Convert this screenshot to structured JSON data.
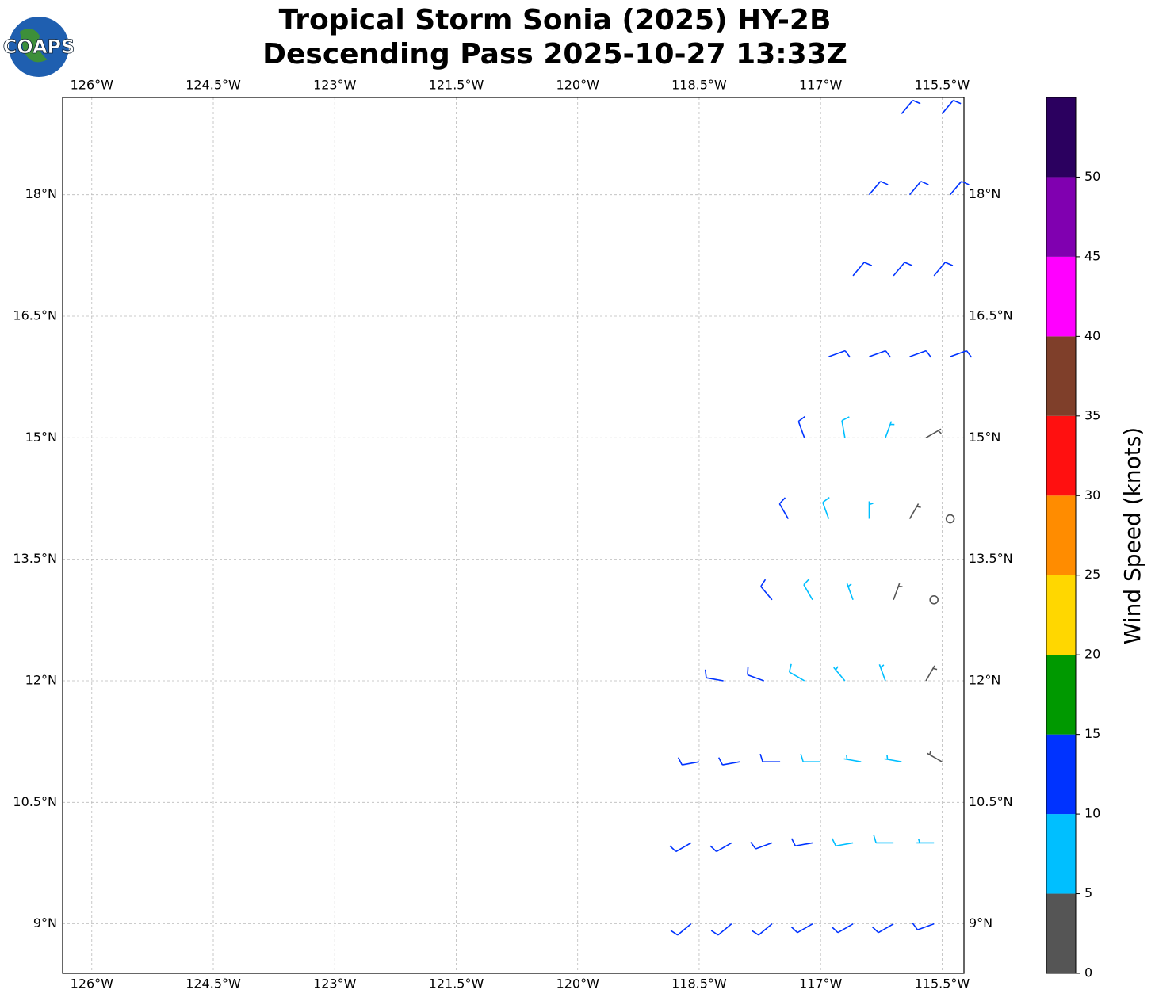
{
  "chart_data": {
    "type": "barbs",
    "logo": "COAPS",
    "title": "Tropical Storm Sonia (2025) HY-2B",
    "subtitle": "Descending Pass 2025-10-27 13:33Z",
    "xlim": [
      -126.36,
      -115.23
    ],
    "ylim": [
      8.39,
      19.2
    ],
    "xticks": [
      {
        "value": -126,
        "label": "126°W"
      },
      {
        "value": -124.5,
        "label": "124.5°W"
      },
      {
        "value": -123,
        "label": "123°W"
      },
      {
        "value": -121.5,
        "label": "121.5°W"
      },
      {
        "value": -120,
        "label": "120°W"
      },
      {
        "value": -118.5,
        "label": "118.5°W"
      },
      {
        "value": -117,
        "label": "117°W"
      },
      {
        "value": -115.5,
        "label": "115.5°W"
      }
    ],
    "yticks": [
      {
        "value": 9,
        "label": "9°N"
      },
      {
        "value": 10.5,
        "label": "10.5°N"
      },
      {
        "value": 12,
        "label": "12°N"
      },
      {
        "value": 13.5,
        "label": "13.5°N"
      },
      {
        "value": 15,
        "label": "15°N"
      },
      {
        "value": 16.5,
        "label": "16.5°N"
      },
      {
        "value": 18,
        "label": "18°N"
      }
    ],
    "grid": true,
    "barbs": {
      "lon": [
        -116.0,
        -115.5,
        -116.4,
        -115.9,
        -115.4,
        -116.6,
        -116.1,
        -115.6,
        -116.9,
        -116.4,
        -115.9,
        -115.4,
        -117.2,
        -116.7,
        -116.2,
        -115.7,
        -117.4,
        -116.9,
        -116.4,
        -115.9,
        -115.4,
        -117.6,
        -117.1,
        -116.6,
        -116.1,
        -115.6,
        -118.2,
        -117.7,
        -117.2,
        -116.7,
        -116.2,
        -115.7,
        -118.5,
        -118.0,
        -117.5,
        -117.0,
        -116.5,
        -116.0,
        -115.5,
        -118.6,
        -118.1,
        -117.6,
        -117.1,
        -116.6,
        -116.1,
        -115.6,
        -118.6,
        -118.1,
        -117.6,
        -117.1,
        -116.6,
        -116.1,
        -115.6
      ],
      "lat": [
        19,
        19,
        18,
        18,
        18,
        17,
        17,
        17,
        16,
        16,
        16,
        16,
        15,
        15,
        15,
        15,
        14,
        14,
        14,
        14,
        14,
        13,
        13,
        13,
        13,
        13,
        12,
        12,
        12,
        12,
        12,
        12,
        11,
        11,
        11,
        11,
        11,
        11,
        11,
        10,
        10,
        10,
        10,
        10,
        10,
        10,
        9,
        9,
        9,
        9,
        9,
        9,
        9
      ],
      "speed": [
        12,
        12,
        12,
        12,
        12,
        12,
        12,
        12,
        11,
        11,
        10,
        10,
        12,
        8,
        7,
        3,
        12,
        9,
        7,
        4,
        1,
        12,
        8,
        7,
        3,
        2,
        12,
        11,
        8,
        7,
        6,
        3,
        12,
        12,
        11,
        8,
        7,
        6,
        4,
        12,
        12,
        11,
        10,
        8,
        8,
        7,
        12,
        12,
        12,
        11,
        11,
        10,
        10
      ],
      "direction": [
        40,
        40,
        40,
        40,
        40,
        40,
        40,
        40,
        70,
        70,
        70,
        70,
        340,
        350,
        20,
        60,
        330,
        340,
        0,
        30,
        90,
        320,
        330,
        340,
        20,
        90,
        280,
        290,
        300,
        320,
        340,
        30,
        260,
        260,
        270,
        270,
        280,
        280,
        300,
        240,
        240,
        250,
        260,
        260,
        270,
        270,
        230,
        230,
        230,
        240,
        240,
        240,
        250
      ]
    },
    "colorbar": {
      "label": "Wind Speed (knots)",
      "lim": [
        0,
        55
      ],
      "levels": [
        0,
        5,
        10,
        15,
        20,
        25,
        30,
        35,
        40,
        45,
        50,
        55
      ],
      "colors": [
        "#555555",
        "#00bfff",
        "#0033ff",
        "#009900",
        "#ffd700",
        "#ff8c00",
        "#ff1010",
        "#7f3f2a",
        "#ff00ff",
        "#8000b0",
        "#2b005f"
      ],
      "ticks": [
        0,
        5,
        10,
        15,
        20,
        25,
        30,
        35,
        40,
        45,
        50
      ]
    }
  }
}
